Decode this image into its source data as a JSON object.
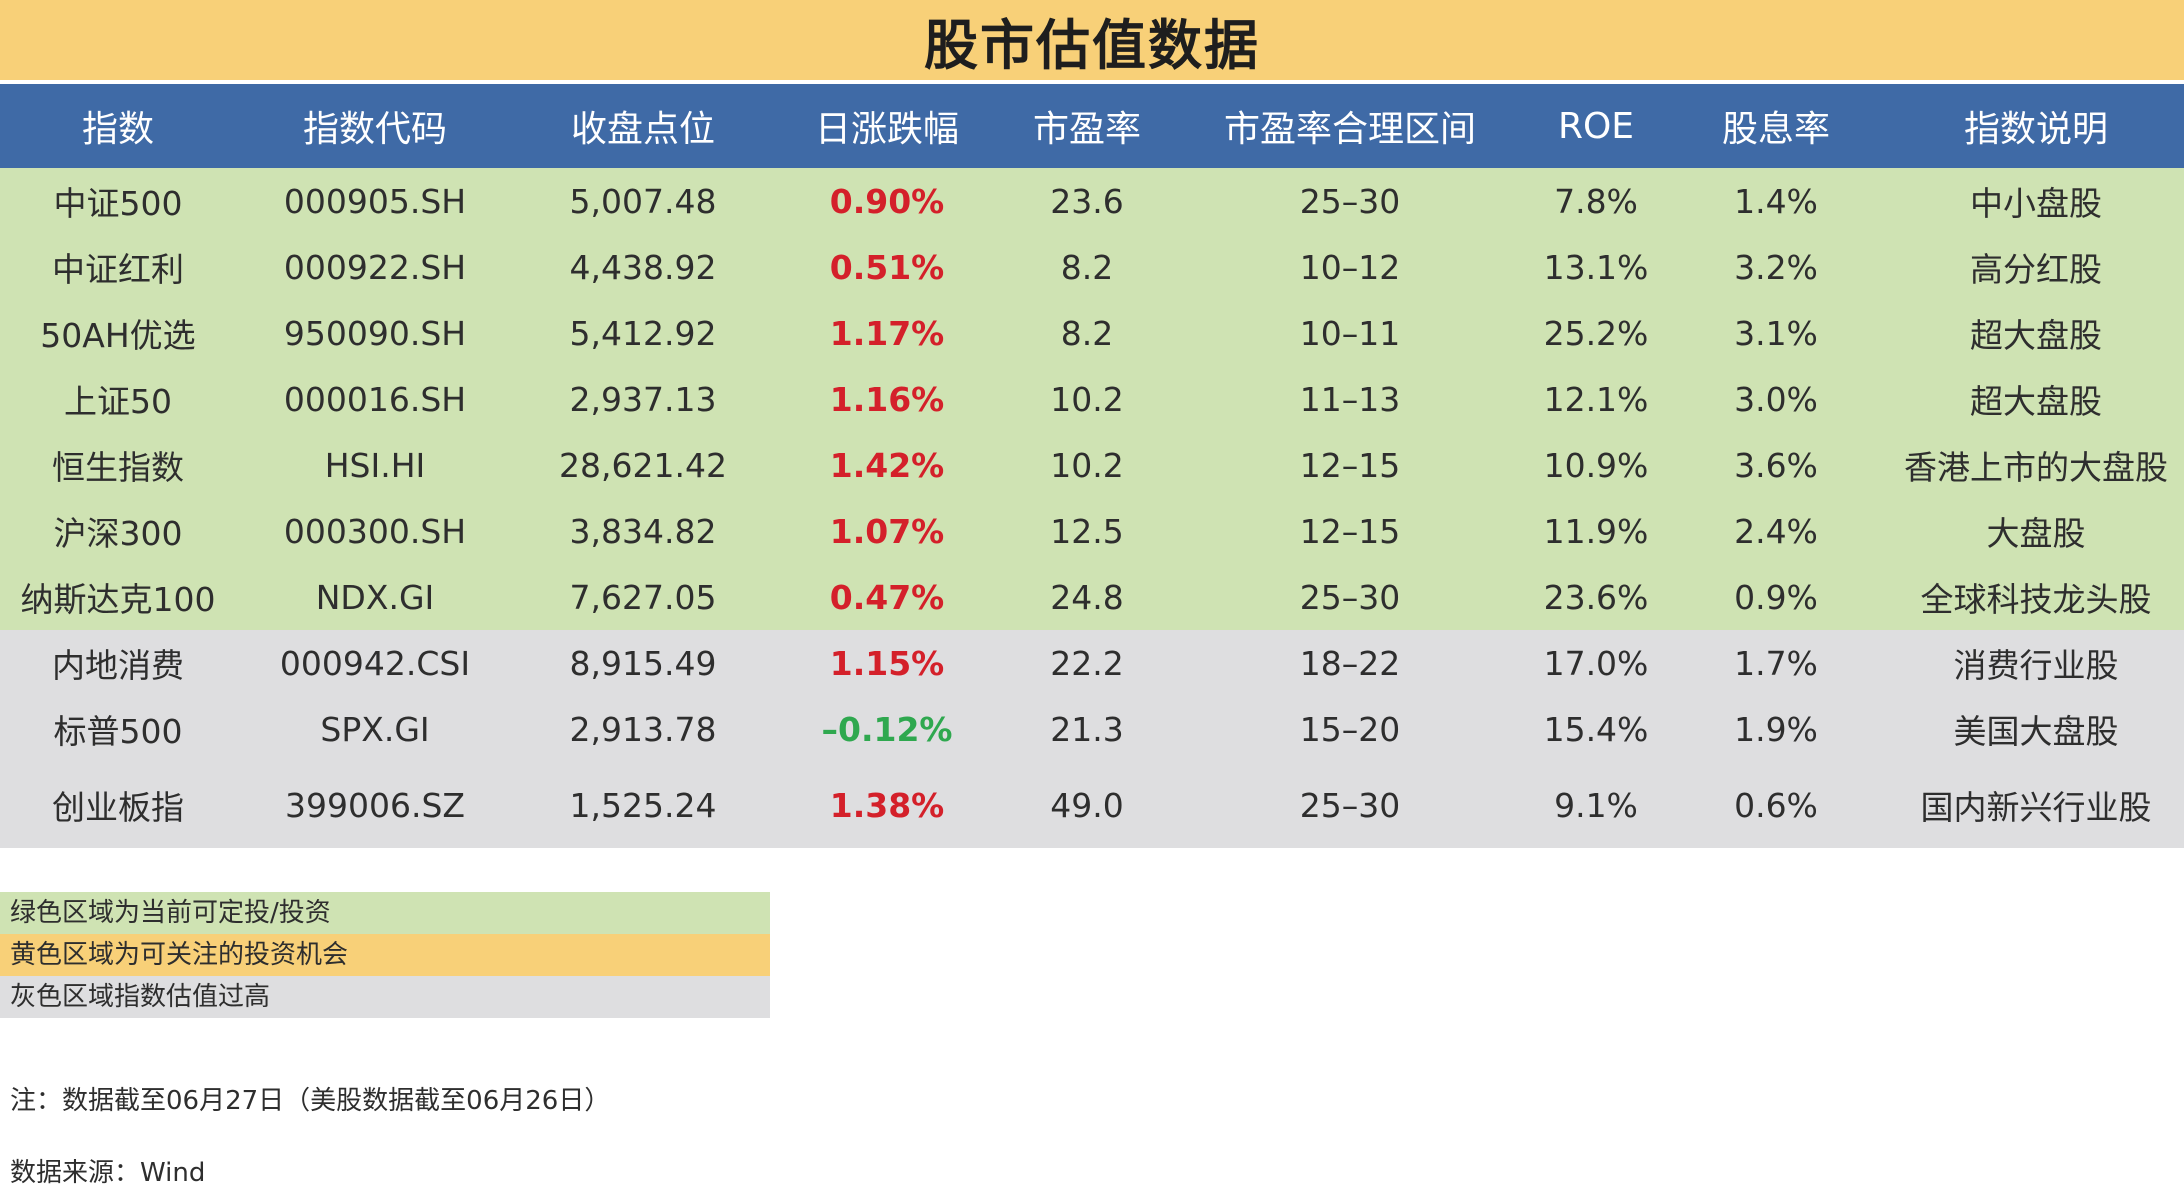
{
  "title": "股市估值数据",
  "columns": [
    "指数",
    "指数代码",
    "收盘点位",
    "日涨跌幅",
    "市盈率",
    "市盈率合理区间",
    "ROE",
    "股息率",
    "指数说明"
  ],
  "rows": [
    {
      "zone": "green",
      "cells": [
        "中证500",
        "000905.SH",
        "5,007.48",
        "0.90%",
        "23.6",
        "25–30",
        "7.8%",
        "1.4%",
        "中小盘股"
      ],
      "change_dir": "up"
    },
    {
      "zone": "green",
      "cells": [
        "中证红利",
        "000922.SH",
        "4,438.92",
        "0.51%",
        "8.2",
        "10–12",
        "13.1%",
        "3.2%",
        "高分红股"
      ],
      "change_dir": "up"
    },
    {
      "zone": "green",
      "cells": [
        "50AH优选",
        "950090.SH",
        "5,412.92",
        "1.17%",
        "8.2",
        "10–11",
        "25.2%",
        "3.1%",
        "超大盘股"
      ],
      "change_dir": "up"
    },
    {
      "zone": "green",
      "cells": [
        "上证50",
        "000016.SH",
        "2,937.13",
        "1.16%",
        "10.2",
        "11–13",
        "12.1%",
        "3.0%",
        "超大盘股"
      ],
      "change_dir": "up"
    },
    {
      "zone": "green",
      "cells": [
        "恒生指数",
        "HSI.HI",
        "28,621.42",
        "1.42%",
        "10.2",
        "12–15",
        "10.9%",
        "3.6%",
        "香港上市的大盘股"
      ],
      "change_dir": "up"
    },
    {
      "zone": "green",
      "cells": [
        "沪深300",
        "000300.SH",
        "3,834.82",
        "1.07%",
        "12.5",
        "12–15",
        "11.9%",
        "2.4%",
        "大盘股"
      ],
      "change_dir": "up"
    },
    {
      "zone": "green",
      "cells": [
        "纳斯达克100",
        "NDX.GI",
        "7,627.05",
        "0.47%",
        "24.8",
        "25–30",
        "23.6%",
        "0.9%",
        "全球科技龙头股"
      ],
      "change_dir": "up"
    },
    {
      "zone": "gray",
      "cells": [
        "内地消费",
        "000942.CSI",
        "8,915.49",
        "1.15%",
        "22.2",
        "18–22",
        "17.0%",
        "1.7%",
        "消费行业股"
      ],
      "change_dir": "up"
    },
    {
      "zone": "gray",
      "cells": [
        "标普500",
        "SPX.GI",
        "2,913.78",
        "–0.12%",
        "21.3",
        "15–20",
        "15.4%",
        "1.9%",
        "美国大盘股"
      ],
      "change_dir": "down"
    },
    {
      "zone": "gray",
      "cells": [
        "创业板指",
        "399006.SZ",
        "1,525.24",
        "1.38%",
        "49.0",
        "25–30",
        "9.1%",
        "0.6%",
        "国内新兴行业股"
      ],
      "change_dir": "up"
    }
  ],
  "legend": {
    "green": "绿色区域为当前可定投/投资",
    "yellow": "黄色区域为可关注的投资机会",
    "gray": "灰色区域指数估值过高"
  },
  "note": "注：数据截至06月27日（美股数据截至06月26日）",
  "source": "数据来源：Wind",
  "colors": {
    "header_bg": "#3f6aa6",
    "title_bg": "#f8d078",
    "green_zone": "#cfe3b3",
    "gray_zone": "#dedee0",
    "up": "#d4202a",
    "down": "#2fa84f"
  }
}
